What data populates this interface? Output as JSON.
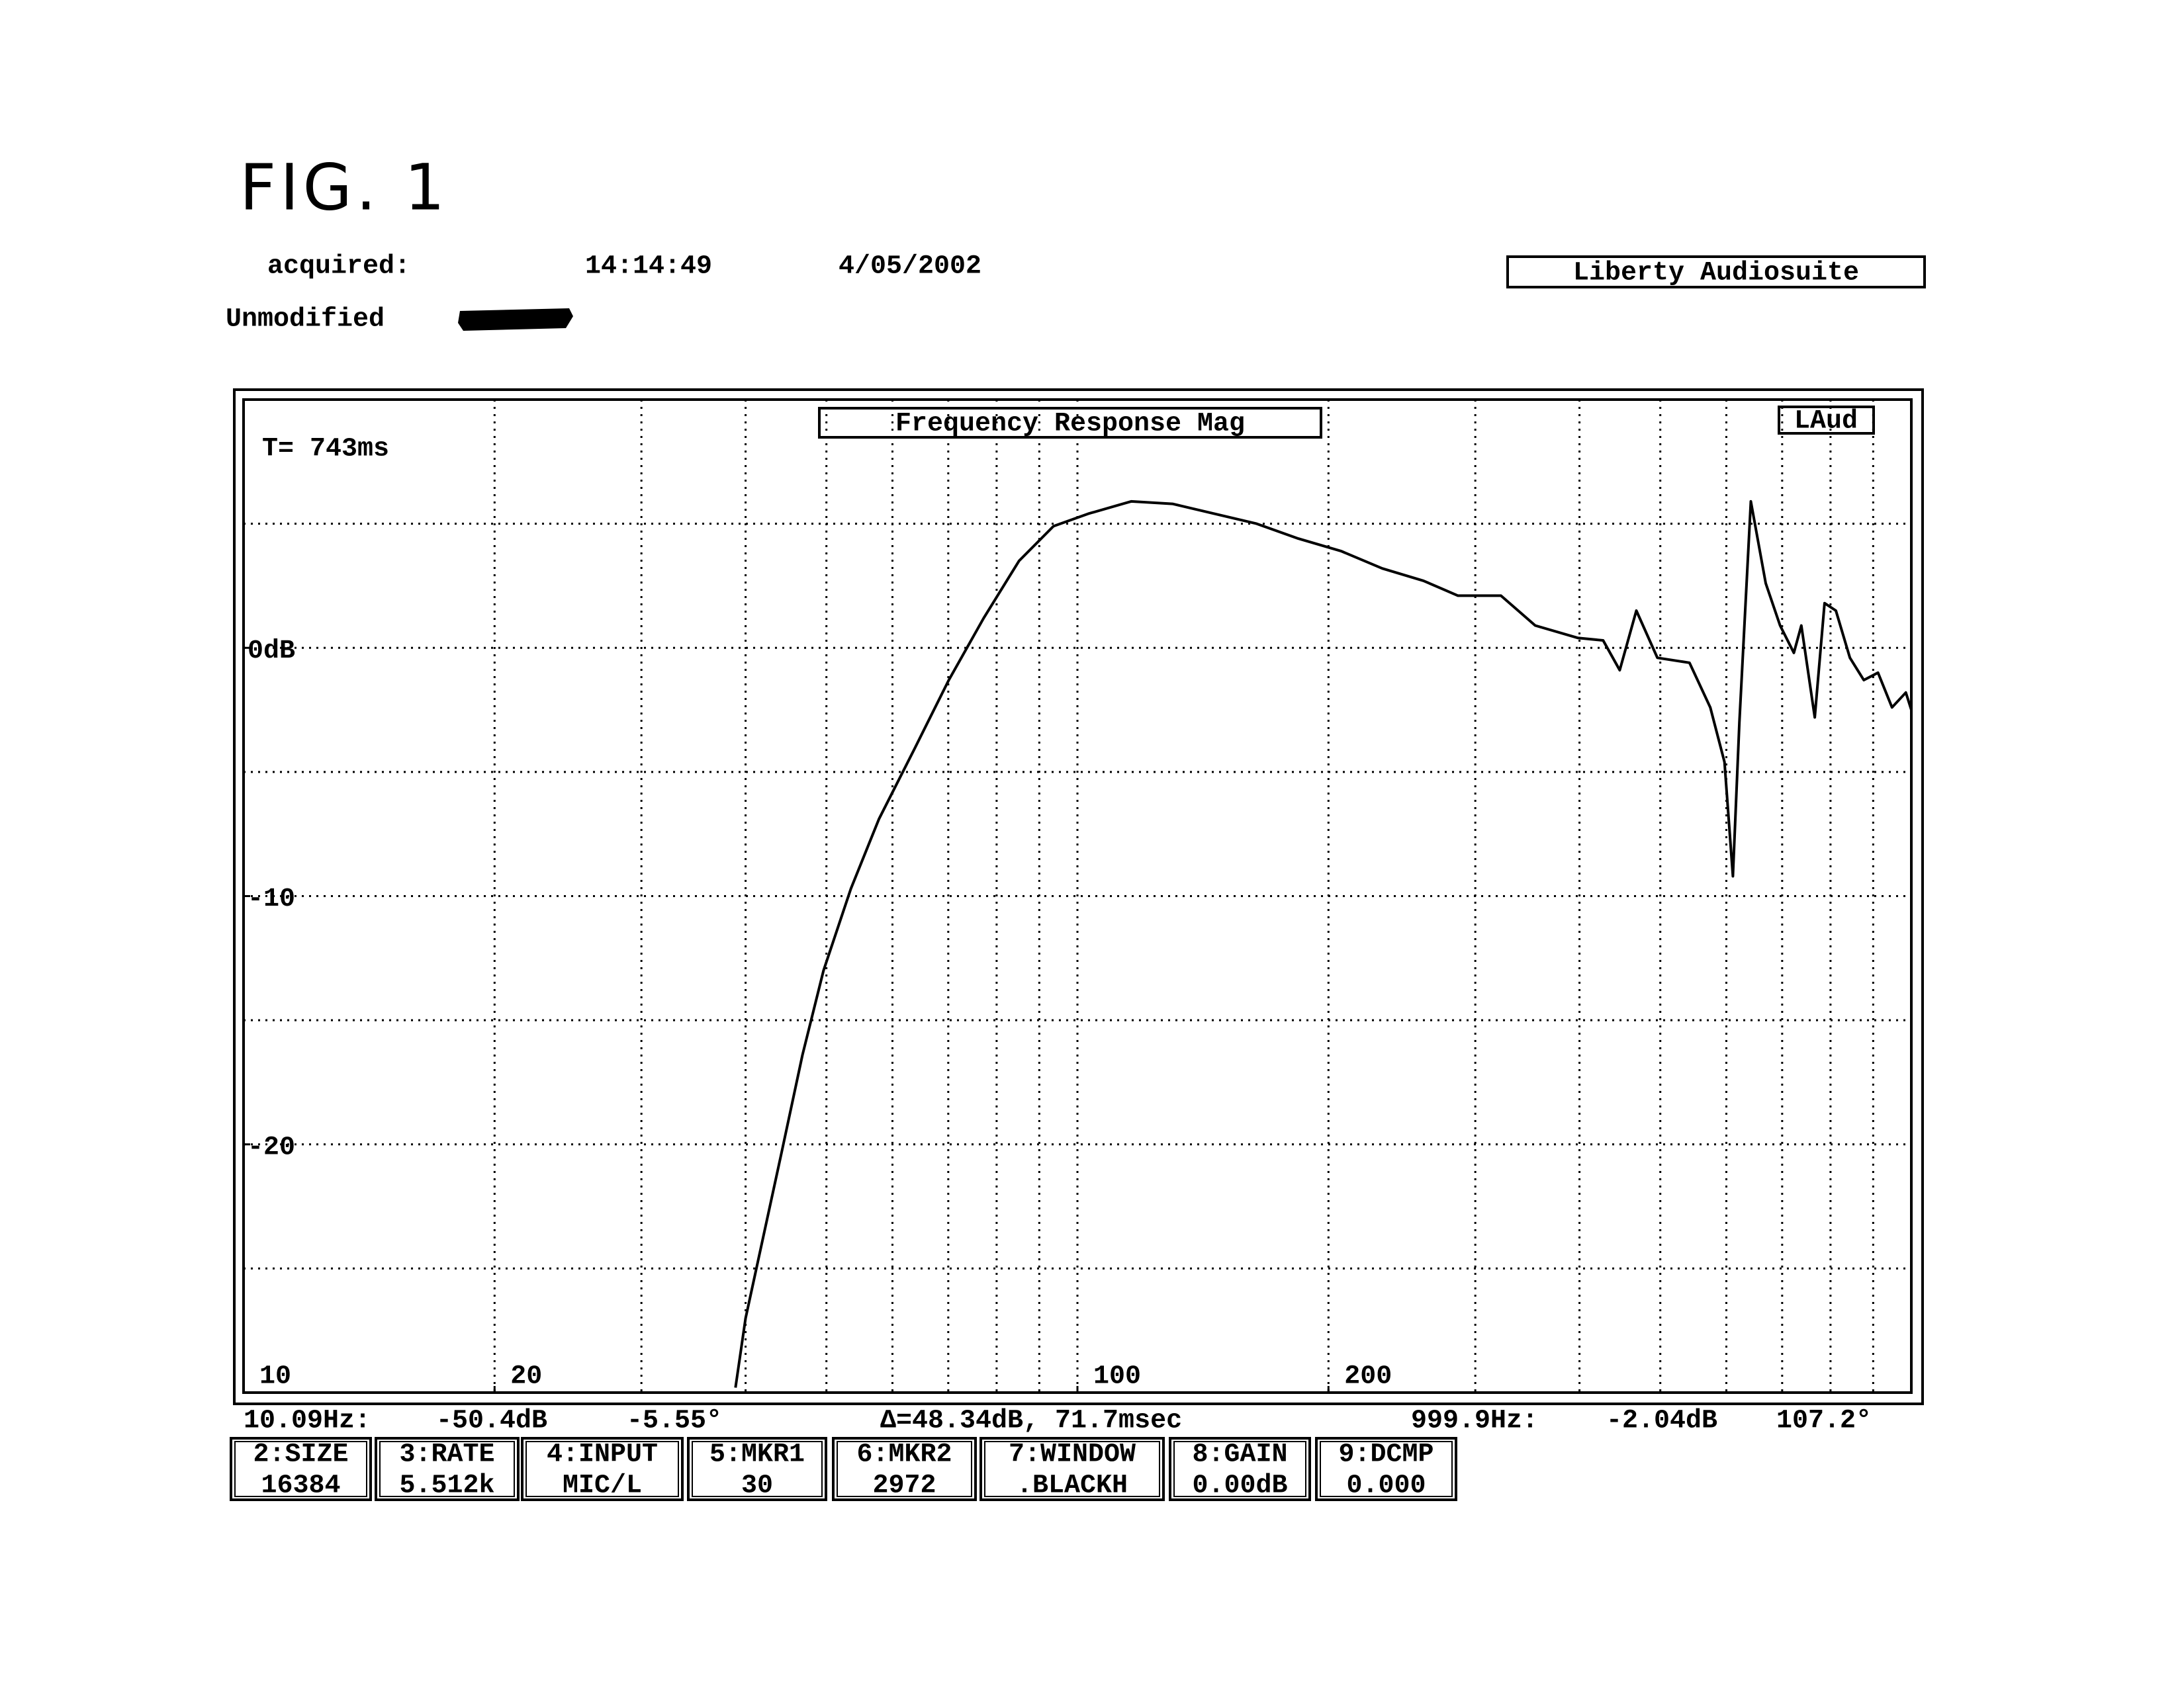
{
  "header": {
    "figure": "FIG. 1",
    "acquired_label": "acquired:",
    "time": "14:14:49",
    "date": "4/05/2002",
    "software": "Liberty Audiosuite",
    "description": "Unmodified"
  },
  "chart_data": {
    "type": "line",
    "title": "Frequency Response Mag",
    "badge": "LAud",
    "annotation": "T= 743ms",
    "x": [
      38.9,
      40,
      41.7,
      44.2,
      46.8,
      49.6,
      53.5,
      57.8,
      63.7,
      70.1,
      77.2,
      85.1,
      93.6,
      103,
      116,
      130,
      146,
      164,
      184,
      207,
      232,
      260,
      286,
      322,
      354,
      398,
      427,
      447,
      468,
      496,
      542,
      574,
      597,
      611,
      622,
      642,
      669,
      696,
      723,
      738,
      766,
      787,
      812,
      844,
      877,
      912,
      948,
      985,
      1000
    ],
    "values": [
      -29.8,
      -27,
      -24.2,
      -20.3,
      -16.4,
      -13.0,
      -9.7,
      -6.9,
      -4.1,
      -1.3,
      1.2,
      3.5,
      4.9,
      5.4,
      5.9,
      5.8,
      5.4,
      5.0,
      4.4,
      3.9,
      3.2,
      2.7,
      2.1,
      2.1,
      0.9,
      0.4,
      0.3,
      -0.9,
      1.5,
      -0.4,
      -0.6,
      -2.4,
      -4.6,
      -9.2,
      -3.0,
      5.9,
      2.6,
      0.9,
      -0.2,
      0.9,
      -2.8,
      1.8,
      1.5,
      -0.4,
      -1.3,
      -1.0,
      -2.4,
      -1.8,
      -2.5
    ],
    "color": "#000000",
    "log_x": true,
    "grid": true,
    "xlim": [
      10,
      1000
    ],
    "xticks": [
      10,
      20,
      100,
      200
    ],
    "xgrid": [
      20,
      30,
      40,
      50,
      60,
      70,
      80,
      90,
      100,
      200,
      300,
      400,
      500,
      600,
      700,
      800,
      900
    ],
    "ylim": [
      -30,
      10
    ],
    "yticks": [
      {
        "value": 0,
        "label": "0dB"
      },
      -10,
      -20
    ],
    "ygrid": [
      5,
      0,
      -5,
      -10,
      -15,
      -20,
      -25
    ]
  },
  "status": {
    "left_freq": "10.09Hz:",
    "left_level": "-50.4dB",
    "left_phase": "-5.55°",
    "delta": "Δ=48.34dB, 71.7msec",
    "right_freq": "999.9Hz:",
    "right_level": "-2.04dB",
    "right_phase": "107.2°"
  },
  "settings": [
    {
      "label": "2:SIZE",
      "value": "16384"
    },
    {
      "label": "3:RATE",
      "value": "5.512k"
    },
    {
      "label": "4:INPUT",
      "value": "MIC/L"
    },
    {
      "label": "5:MKR1",
      "value": "30"
    },
    {
      "label": "6:MKR2",
      "value": "2972"
    },
    {
      "label": "7:WINDOW",
      "value": ".BLACKH"
    },
    {
      "label": "8:GAIN",
      "value": "0.00dB"
    },
    {
      "label": "9:DCMP",
      "value": "0.000"
    }
  ]
}
